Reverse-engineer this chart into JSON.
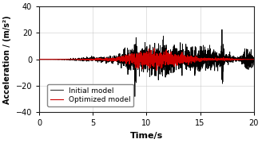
{
  "title": "",
  "xlabel": "Time/s",
  "ylabel": "Acceleration / (m/s²)",
  "xlim": [
    0,
    20
  ],
  "ylim": [
    -40,
    40
  ],
  "xticks": [
    0,
    5,
    10,
    15,
    20
  ],
  "yticks": [
    -40,
    -20,
    0,
    20,
    40
  ],
  "initial_color": "#000000",
  "optimized_color": "#cc0000",
  "legend_labels": [
    "Initial model",
    "Optimized model"
  ],
  "background_color": "#ffffff",
  "grid_color": "#c0c0c0",
  "linewidth_initial": 0.6,
  "linewidth_optimized": 0.8,
  "figsize": [
    3.28,
    1.8
  ],
  "dpi": 100
}
